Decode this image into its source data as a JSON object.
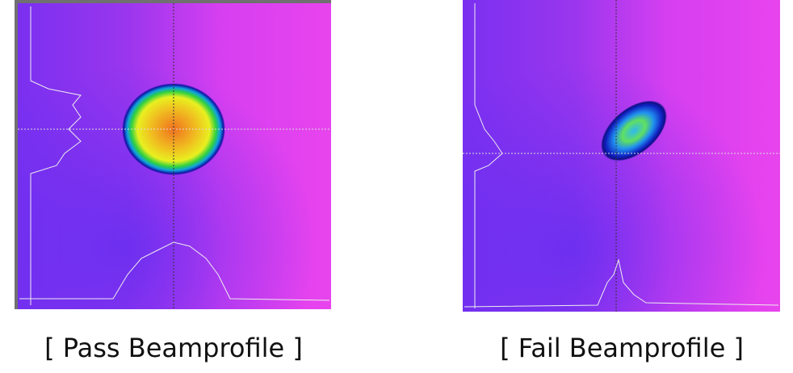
{
  "figures": [
    {
      "caption": "[ Pass Beamprofile ]"
    },
    {
      "caption": "[ Fail Beamprofile ]"
    }
  ]
}
